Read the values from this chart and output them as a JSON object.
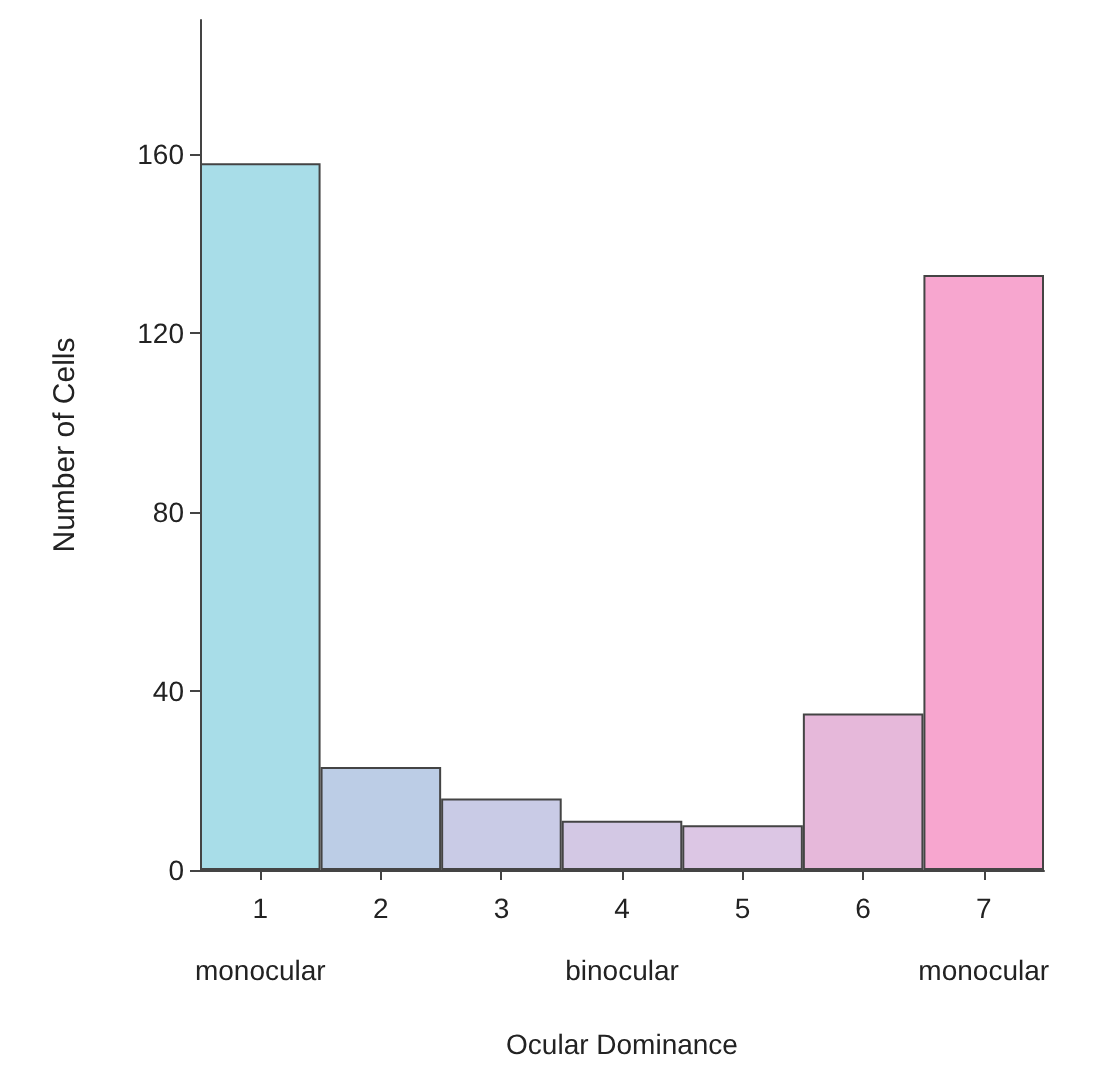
{
  "chart_data": {
    "type": "bar",
    "xlabel": "Ocular Dominance",
    "ylabel": "Number of Cells",
    "categories": [
      "1",
      "2",
      "3",
      "4",
      "5",
      "6",
      "7"
    ],
    "values": [
      158,
      23,
      16,
      11,
      10,
      35,
      133
    ],
    "colors": [
      "#a8dde8",
      "#bccde6",
      "#c9cbe6",
      "#d3c8e4",
      "#dcc6e4",
      "#e6b8da",
      "#f7a6cf"
    ],
    "ylim": [
      0,
      190
    ],
    "yticks": [
      0,
      40,
      80,
      120,
      160
    ],
    "grid": false,
    "annotations": [
      "monocular",
      "binocular",
      "monocular"
    ]
  }
}
